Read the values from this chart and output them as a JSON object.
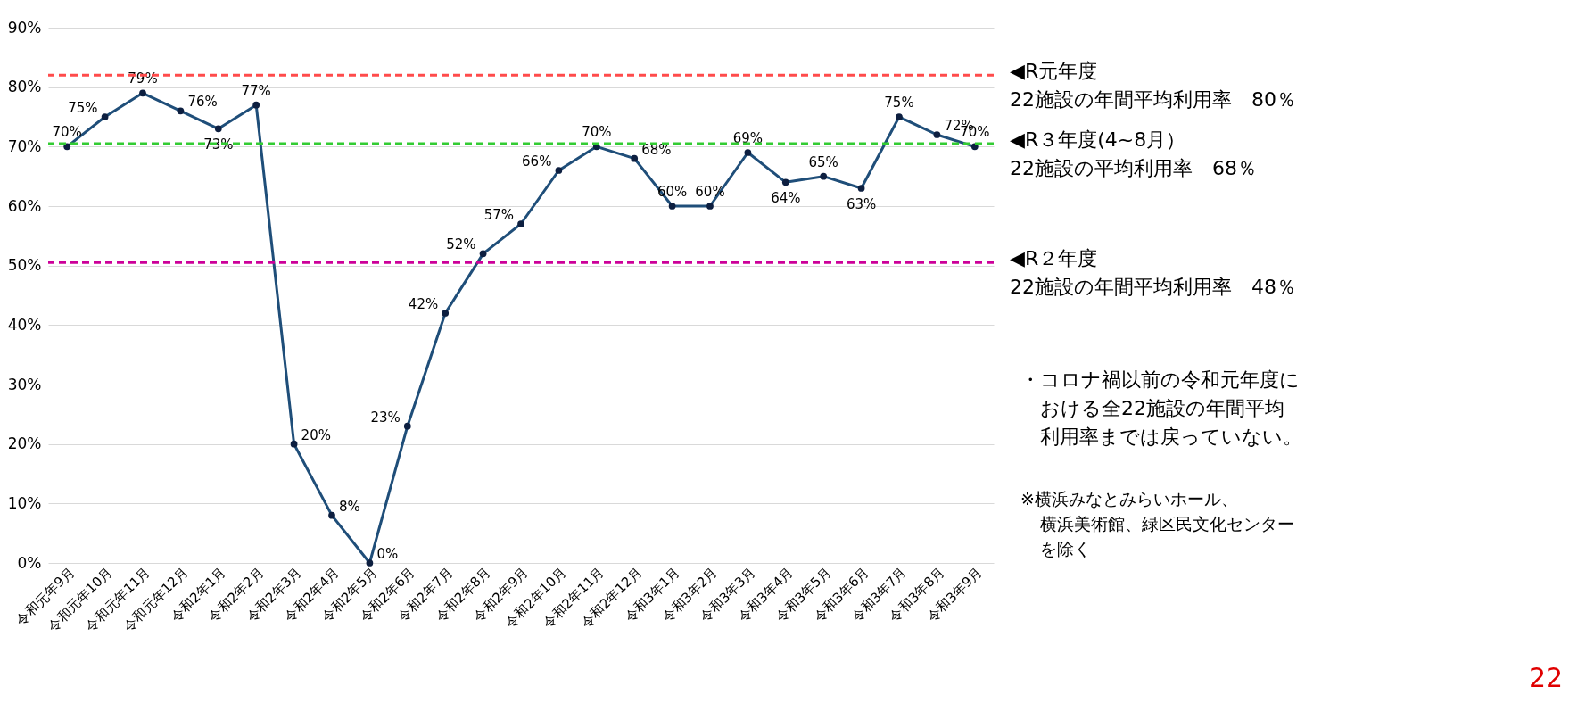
{
  "chart_data": {
    "type": "line",
    "categories": [
      "令和元年9月",
      "令和元年10月",
      "令和元年11月",
      "令和元年12月",
      "令和2年1月",
      "令和2年2月",
      "令和2年3月",
      "令和2年4月",
      "令和2年5月",
      "令和2年6月",
      "令和2年7月",
      "令和2年8月",
      "令和2年9月",
      "令和2年10月",
      "令和2年11月",
      "令和2年12月",
      "令和3年1月",
      "令和3年2月",
      "令和3年3月",
      "令和3年4月",
      "令和3年5月",
      "令和3年6月",
      "令和3年7月",
      "令和3年8月",
      "令和3年9月"
    ],
    "series": [
      {
        "color": "#1f4e79",
        "values": [
          70,
          75,
          79,
          76,
          73,
          77,
          20,
          8,
          0,
          23,
          42,
          52,
          57,
          66,
          70,
          68,
          60,
          60,
          69,
          64,
          65,
          63,
          75,
          72,
          70
        ]
      }
    ],
    "value_labels": [
      "70%",
      "75%",
      "79%",
      "76%",
      "73%",
      "77%",
      "20%",
      "8%",
      "0%",
      "23%",
      "42%",
      "52%",
      "57%",
      "66%",
      "70%",
      "68%",
      "60%",
      "60%",
      "69%",
      "64%",
      "65%",
      "63%",
      "75%",
      "72%",
      "70%"
    ],
    "ylim": [
      0,
      90
    ],
    "yticks": [
      {
        "value": 0,
        "label": "0%"
      },
      {
        "value": 10,
        "label": "10%"
      },
      {
        "value": 20,
        "label": "20%"
      },
      {
        "value": 30,
        "label": "30%"
      },
      {
        "value": 40,
        "label": "40%"
      },
      {
        "value": 50,
        "label": "50%"
      },
      {
        "value": 60,
        "label": "60%"
      },
      {
        "value": 70,
        "label": "70%"
      },
      {
        "value": 80,
        "label": "80%"
      },
      {
        "value": 90,
        "label": "90%"
      }
    ],
    "grid": "y",
    "marker": "circle",
    "line_style": "solid",
    "ref_lines": [
      {
        "axis": "y",
        "value": 82,
        "label": "◀R元年度\n22施設の年間平均利用率　80％",
        "color": "#ff4b4b",
        "line_style": "dashed"
      },
      {
        "axis": "y",
        "value": 70.5,
        "label": "◀R３年度(4~8月）\n22施設の平均利用率　68％",
        "color": "#33cc33",
        "line_style": "dashed"
      },
      {
        "axis": "y",
        "value": 50.5,
        "label": "◀R２年度\n22施設の年間平均利用率　48％",
        "color": "#cc0099",
        "line_style": "dashed"
      }
    ],
    "annotations": [
      "・コロナ禍以前の令和元年度に",
      "おける全22施設の年間平均",
      "利用率までは戻っていない。",
      "※横浜みなとみらいホール、",
      "横浜美術館、緑区民文化センター",
      "を除く",
      "22"
    ]
  }
}
